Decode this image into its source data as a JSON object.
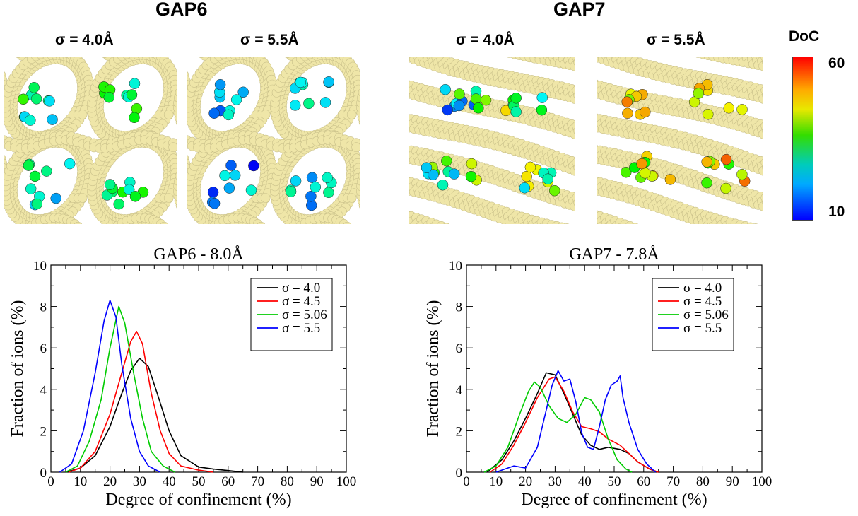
{
  "headers": {
    "gap6_title": "GAP6",
    "gap7_title": "GAP7",
    "gap6_sub_left": "σ = 4.0Å",
    "gap6_sub_right": "σ = 5.5Å",
    "gap7_sub_left": "σ = 4.0Å",
    "gap7_sub_right": "σ = 5.5Å"
  },
  "colorbar": {
    "title": "DoC",
    "max_label": "60",
    "min_label": "10",
    "min": 10,
    "max": 60
  },
  "colors": {
    "framework": "#efe6a8",
    "background": "#ffffff"
  },
  "chart_data": [
    {
      "type": "line",
      "title": "GAP6 - 8.0Å",
      "xlabel": "Degree of confinement (%)",
      "ylabel": "Fraction of ions (%)",
      "xlim": [
        0,
        100
      ],
      "ylim": [
        0,
        10
      ],
      "xticks": [
        "0",
        "10",
        "20",
        "30",
        "40",
        "50",
        "60",
        "70",
        "80",
        "90",
        "100"
      ],
      "yticks": [
        "0",
        "2",
        "4",
        "6",
        "8",
        "10"
      ],
      "legend_position": "top-right",
      "series": [
        {
          "name": "σ = 4.0",
          "color": "#000000",
          "points": [
            [
              5,
              0
            ],
            [
              10,
              0.2
            ],
            [
              15,
              0.8
            ],
            [
              20,
              2.2
            ],
            [
              24,
              3.8
            ],
            [
              27,
              4.9
            ],
            [
              30,
              5.5
            ],
            [
              33,
              5.1
            ],
            [
              36,
              3.8
            ],
            [
              40,
              2.0
            ],
            [
              44,
              0.8
            ],
            [
              50,
              0.25
            ],
            [
              55,
              0.15
            ],
            [
              60,
              0.08
            ],
            [
              65,
              0
            ]
          ]
        },
        {
          "name": "σ = 4.5",
          "color": "#ff0000",
          "points": [
            [
              6,
              0
            ],
            [
              10,
              0.2
            ],
            [
              15,
              1.0
            ],
            [
              20,
              2.8
            ],
            [
              24,
              4.8
            ],
            [
              27,
              6.3
            ],
            [
              29,
              6.8
            ],
            [
              31,
              6.2
            ],
            [
              34,
              3.8
            ],
            [
              37,
              2.0
            ],
            [
              40,
              0.9
            ],
            [
              44,
              0.3
            ],
            [
              50,
              0.1
            ],
            [
              55,
              0
            ]
          ]
        },
        {
          "name": "σ = 5.06",
          "color": "#00cc00",
          "points": [
            [
              5,
              0
            ],
            [
              9,
              0.3
            ],
            [
              13,
              1.5
            ],
            [
              17,
              3.5
            ],
            [
              20,
              6.0
            ],
            [
              23,
              8.0
            ],
            [
              25,
              7.2
            ],
            [
              28,
              4.8
            ],
            [
              31,
              2.6
            ],
            [
              34,
              1.0
            ],
            [
              38,
              0.3
            ],
            [
              42,
              0
            ]
          ]
        },
        {
          "name": "σ = 5.5",
          "color": "#0000ff",
          "points": [
            [
              3,
              0
            ],
            [
              7,
              0.4
            ],
            [
              11,
              2.0
            ],
            [
              15,
              4.8
            ],
            [
              18,
              7.3
            ],
            [
              20,
              8.3
            ],
            [
              22,
              7.5
            ],
            [
              24,
              5.2
            ],
            [
              27,
              2.6
            ],
            [
              30,
              1.0
            ],
            [
              33,
              0.3
            ],
            [
              37,
              0
            ]
          ]
        }
      ]
    },
    {
      "type": "line",
      "title": "GAP7 - 7.8Å",
      "xlabel": "Degree of confinement (%)",
      "ylabel": "Fraction of ions (%)",
      "xlim": [
        0,
        100
      ],
      "ylim": [
        0,
        10
      ],
      "xticks": [
        "0",
        "10",
        "20",
        "30",
        "40",
        "50",
        "60",
        "70",
        "80",
        "90",
        "100"
      ],
      "yticks": [
        "0",
        "2",
        "4",
        "6",
        "8",
        "10"
      ],
      "legend_position": "top-right",
      "series": [
        {
          "name": "σ = 4.0",
          "color": "#000000",
          "points": [
            [
              7,
              0
            ],
            [
              12,
              0.6
            ],
            [
              16,
              1.5
            ],
            [
              20,
              2.6
            ],
            [
              24,
              3.8
            ],
            [
              27,
              4.8
            ],
            [
              30,
              4.7
            ],
            [
              33,
              3.8
            ],
            [
              36,
              2.8
            ],
            [
              39,
              1.8
            ],
            [
              42,
              1.3
            ],
            [
              45,
              1.1
            ],
            [
              48,
              1.2
            ],
            [
              52,
              1.1
            ],
            [
              55,
              0.9
            ],
            [
              58,
              0.5
            ],
            [
              62,
              0.15
            ],
            [
              65,
              0
            ]
          ]
        },
        {
          "name": "σ = 4.5",
          "color": "#ff0000",
          "points": [
            [
              8,
              0
            ],
            [
              12,
              0.4
            ],
            [
              16,
              1.3
            ],
            [
              20,
              2.4
            ],
            [
              24,
              3.6
            ],
            [
              28,
              4.5
            ],
            [
              30,
              4.6
            ],
            [
              33,
              3.9
            ],
            [
              36,
              2.9
            ],
            [
              39,
              2.2
            ],
            [
              42,
              2.1
            ],
            [
              45,
              1.95
            ],
            [
              48,
              1.6
            ],
            [
              52,
              1.3
            ],
            [
              55,
              0.9
            ],
            [
              58,
              0.5
            ],
            [
              62,
              0.15
            ],
            [
              65,
              0
            ]
          ]
        },
        {
          "name": "σ = 5.06",
          "color": "#00cc00",
          "points": [
            [
              6,
              0
            ],
            [
              10,
              0.3
            ],
            [
              14,
              1.2
            ],
            [
              18,
              2.8
            ],
            [
              21,
              3.9
            ],
            [
              23,
              4.35
            ],
            [
              25,
              4.1
            ],
            [
              28,
              3.2
            ],
            [
              31,
              2.6
            ],
            [
              34,
              2.4
            ],
            [
              37,
              2.8
            ],
            [
              40,
              3.6
            ],
            [
              42,
              3.5
            ],
            [
              45,
              2.9
            ],
            [
              48,
              1.6
            ],
            [
              51,
              0.6
            ],
            [
              54,
              0.15
            ],
            [
              56,
              0
            ]
          ]
        },
        {
          "name": "σ = 5.5",
          "color": "#0000ff",
          "points": [
            [
              10,
              0
            ],
            [
              14,
              0.2
            ],
            [
              16,
              0.3
            ],
            [
              20,
              0.2
            ],
            [
              24,
              1.2
            ],
            [
              27,
              3.0
            ],
            [
              29,
              4.2
            ],
            [
              31,
              4.9
            ],
            [
              33,
              4.4
            ],
            [
              35,
              4.5
            ],
            [
              37,
              3.4
            ],
            [
              39,
              1.9
            ],
            [
              41,
              1.2
            ],
            [
              43,
              1.1
            ],
            [
              45,
              2.2
            ],
            [
              47,
              3.5
            ],
            [
              49,
              4.2
            ],
            [
              51,
              4.4
            ],
            [
              52,
              4.65
            ],
            [
              53,
              3.6
            ],
            [
              55,
              2.4
            ],
            [
              58,
              1.1
            ],
            [
              61,
              0.4
            ],
            [
              64,
              0
            ]
          ]
        }
      ]
    }
  ]
}
